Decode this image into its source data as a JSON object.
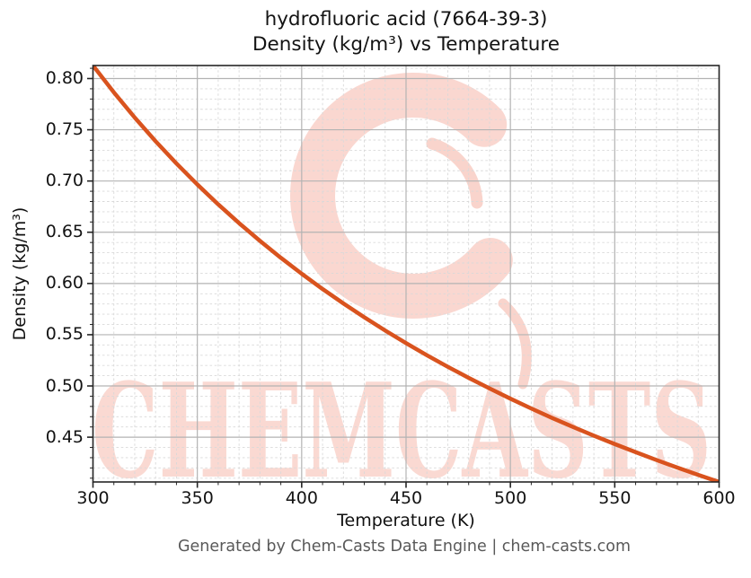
{
  "title": {
    "line1": "hydrofluoric acid (7664-39-3)",
    "line2": "Density (kg/m³) vs Temperature"
  },
  "watermark": {
    "text": "CHEMCASTS",
    "logo_name": "chem-casts-brush-c-logo"
  },
  "footer": {
    "text": "Generated by Chem-Casts Data Engine | chem-casts.com"
  },
  "colors": {
    "line": "#d9531e",
    "major_grid": "#b3b3b3",
    "minor_grid": "#d9d9d9",
    "spine": "#262626",
    "tick_label": "#131313",
    "watermark": "#f2a08f",
    "footer_text": "#595959"
  },
  "chart_data": {
    "type": "line",
    "title": "hydrofluoric acid (7664-39-3) — Density (kg/m³) vs Temperature",
    "xlabel": "Temperature (K)",
    "ylabel": "Density (kg/m³)",
    "xlim": [
      300,
      600
    ],
    "ylim": [
      0.4063,
      0.8127
    ],
    "xticks": [
      300,
      350,
      400,
      450,
      500,
      550,
      600
    ],
    "yticks": [
      0.45,
      0.5,
      0.55,
      0.6,
      0.65,
      0.7,
      0.75,
      0.8
    ],
    "minor_x_step": 10,
    "minor_y_step": 0.01,
    "grid": {
      "major": "solid",
      "minor": "dashed"
    },
    "legend_position": "none",
    "series": [
      {
        "name": "Density (kg/m³)",
        "color": "#d9531e",
        "x": [
          300,
          310,
          320,
          330,
          340,
          350,
          360,
          370,
          380,
          390,
          400,
          410,
          420,
          430,
          440,
          450,
          460,
          470,
          480,
          490,
          500,
          510,
          520,
          530,
          540,
          550,
          560,
          570,
          580,
          590,
          600
        ],
        "y": [
          0.8127,
          0.7865,
          0.7619,
          0.7388,
          0.7171,
          0.6966,
          0.6772,
          0.6589,
          0.6416,
          0.6251,
          0.6095,
          0.5946,
          0.5805,
          0.567,
          0.5541,
          0.5418,
          0.53,
          0.5187,
          0.5079,
          0.4976,
          0.4876,
          0.478,
          0.4688,
          0.46,
          0.4515,
          0.4433,
          0.4354,
          0.4277,
          0.4203,
          0.4132,
          0.4063
        ]
      }
    ]
  }
}
